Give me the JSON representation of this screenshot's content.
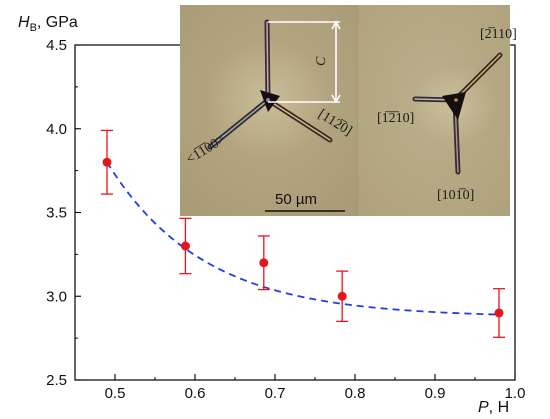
{
  "chart_data": {
    "type": "scatter",
    "ylabel_main": "H",
    "ylabel_sub": "B",
    "ylabel_unit": ", GPa",
    "xlabel_main": "P",
    "xlabel_unit": ", H",
    "xlim": [
      0.45,
      1.0
    ],
    "ylim": [
      2.5,
      4.5
    ],
    "xticks": [
      0.5,
      0.6,
      0.7,
      0.8,
      0.9,
      1.0
    ],
    "xtick_labels": [
      "0.5",
      "0.6",
      "0.7",
      "0.8",
      "0.9",
      "1.0"
    ],
    "yticks": [
      2.5,
      3.0,
      3.5,
      4.0,
      4.5
    ],
    "ytick_labels": [
      "2.5",
      "3.0",
      "3.5",
      "4.0",
      "4.5"
    ],
    "series": [
      {
        "points": [
          {
            "x": 0.49,
            "y": 3.8,
            "err": 0.19
          },
          {
            "x": 0.588,
            "y": 3.3,
            "err": 0.165
          },
          {
            "x": 0.686,
            "y": 3.2,
            "err": 0.16
          },
          {
            "x": 0.784,
            "y": 3.0,
            "err": 0.15
          },
          {
            "x": 0.98,
            "y": 2.9,
            "err": 0.145
          }
        ],
        "color": "#e8141b"
      }
    ],
    "fit_curve": {
      "style": "dashed",
      "color": "#1f3fe0",
      "model": "exponential decay",
      "y0": 2.875,
      "A": 0.925,
      "x0": 0.49,
      "tau": 0.12,
      "x_range": [
        0.49,
        0.98
      ]
    }
  },
  "inset": {
    "left_panel": {
      "dimension_label": "C",
      "direction_left": "<1̅1̅00>",
      "direction_right": "[112̅0]",
      "scale_bar_label": "50 µm"
    },
    "right_panel": {
      "direction_top": "[2̅110]",
      "direction_left": "[1̅2̅10]",
      "direction_bottom": "[101̅0]"
    }
  }
}
